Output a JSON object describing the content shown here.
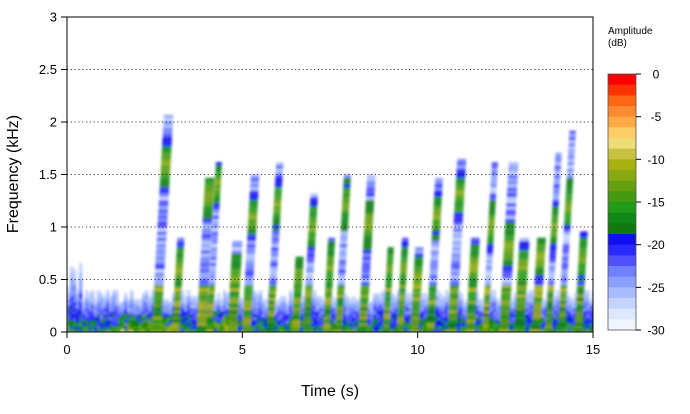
{
  "chart_data": {
    "type": "heatmap",
    "title": "",
    "xlabel": "Time (s)",
    "ylabel": "Frequency (kHz)",
    "xlim": [
      0,
      15
    ],
    "ylim": [
      0,
      3
    ],
    "x_ticks": [
      0,
      5,
      10,
      15
    ],
    "x_tick_labels": [
      "0",
      "5",
      "10",
      "15"
    ],
    "y_ticks": [
      0,
      0.5,
      1,
      1.5,
      2,
      2.5,
      3
    ],
    "y_tick_labels": [
      "0",
      "0.5",
      "1",
      "1.5",
      "2",
      "2.5",
      "3"
    ],
    "grid": "horizontal dotted",
    "legend": {
      "title_line1": "Amplitude",
      "title_line2": "(dB)",
      "placement": "right",
      "range": [
        -30,
        0
      ],
      "ticks": [
        0,
        -5,
        -10,
        -15,
        -20,
        -25,
        -30
      ],
      "tick_labels": [
        "0",
        "-5",
        "-10",
        "-15",
        "-20",
        "-25",
        "-30"
      ],
      "colors": [
        "#ff0000",
        "#ff3300",
        "#ff6611",
        "#ff8833",
        "#ffaa44",
        "#ffcc66",
        "#eedd77",
        "#c8c040",
        "#aab010",
        "#88aa10",
        "#66a010",
        "#449a10",
        "#229a18",
        "#108818",
        "#107a10",
        "#1010ee",
        "#2a2aff",
        "#5050ff",
        "#6f7fff",
        "#8aa0ff",
        "#a8bcff",
        "#c4d4ff",
        "#dde8ff",
        "#f0f5ff"
      ]
    },
    "description_points": [
      {
        "t": 2.8,
        "f": 1.7,
        "db": -18
      },
      {
        "t": 4.0,
        "f": 1.3,
        "db": -16
      },
      {
        "t": 5.2,
        "f": 1.1,
        "db": -15
      },
      {
        "t": 8.0,
        "f": 1.2,
        "db": -16
      },
      {
        "t": 10.6,
        "f": 1.1,
        "db": -15
      },
      {
        "t": 11.3,
        "f": 1.5,
        "db": -18
      }
    ]
  }
}
